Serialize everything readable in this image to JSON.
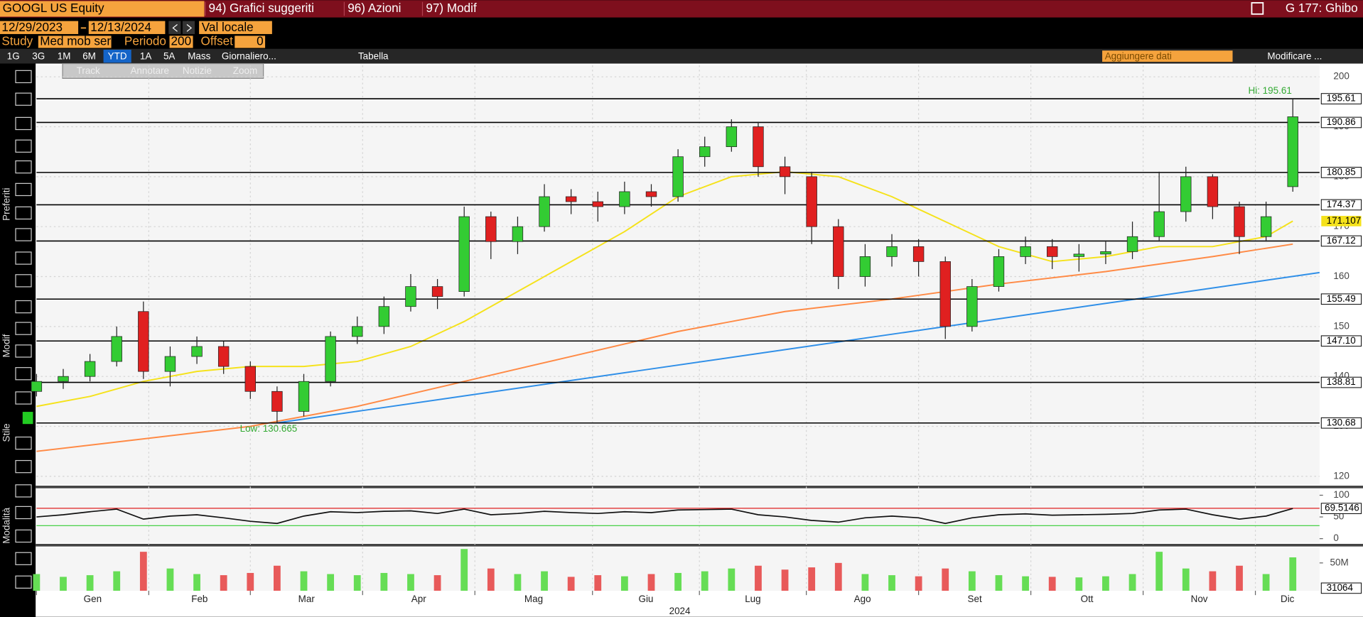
{
  "ui": {
    "ticker": "GOOGL US Equity",
    "menu": [
      "94) Grafici suggeriti",
      "96) Azioni",
      "97) Modif"
    ],
    "right_title": "G 177: Ghibo",
    "start_date": "12/29/2023",
    "end_date": "12/13/2024",
    "currency": "Val locale",
    "study_label": "Study",
    "study": "Med mob ser",
    "period_label": "Periodo",
    "period": "200",
    "offset_label": "Offset",
    "offset": "0",
    "tabs": [
      "1G",
      "3G",
      "1M",
      "6M",
      "YTD",
      "1A",
      "5A",
      "Mass",
      "Giornaliero..."
    ],
    "table": "Tabella",
    "add_data": "Aggiungere dati",
    "edit": "Modificare ...",
    "tools": [
      "Track",
      "Annotare",
      "Notizie",
      "Zoom"
    ],
    "side": [
      "Preferiti",
      "Modif",
      "Stile",
      "Modalità"
    ],
    "volume_label": "31064"
  },
  "chart_data": [
    {
      "type": "candlestick",
      "up_color": "#33cc33",
      "down_color": "#e02020",
      "grid": true,
      "x": [
        0,
        5,
        10,
        15,
        20,
        25,
        30,
        35,
        40,
        45,
        50,
        55,
        60,
        65,
        70,
        75,
        80,
        85,
        90,
        95,
        100,
        105,
        110,
        115,
        120,
        125,
        130,
        135,
        140,
        145,
        150,
        155,
        160,
        165,
        170,
        175,
        180,
        185,
        190,
        195,
        200,
        205,
        210,
        215,
        220,
        225,
        230,
        235
      ],
      "open": [
        137,
        139,
        140,
        143,
        153,
        141,
        144,
        146,
        142,
        137,
        133,
        139,
        148,
        150,
        154,
        158,
        157,
        172,
        167,
        170,
        176,
        175,
        174,
        177,
        176,
        184,
        186,
        190,
        182,
        180,
        170,
        160,
        164,
        166,
        163,
        150,
        158,
        164,
        166,
        164,
        164.5,
        165,
        168,
        173,
        180,
        174,
        168,
        178
      ],
      "high": [
        140.5,
        141.5,
        144.5,
        150,
        155,
        146,
        148,
        147,
        143,
        138,
        140.5,
        149,
        152,
        156,
        160.5,
        159.5,
        174,
        173,
        172,
        178.5,
        177.5,
        177,
        179,
        178.5,
        185.5,
        188,
        191.5,
        191,
        184,
        181,
        171.5,
        166.5,
        168.5,
        167.5,
        164,
        159.5,
        165.5,
        168,
        167.5,
        166.5,
        167,
        171,
        181,
        182,
        180.5,
        175,
        175,
        195.6
      ],
      "low": [
        136,
        137.5,
        139,
        142,
        139.5,
        138,
        142.5,
        140.5,
        135.5,
        130.7,
        132,
        138,
        146.5,
        148.5,
        153,
        153.5,
        156,
        163.5,
        164.5,
        169,
        172.5,
        171,
        172.5,
        174,
        175,
        182,
        185,
        180,
        176.5,
        166.5,
        157.5,
        158,
        162,
        160,
        147.5,
        149,
        157,
        162.5,
        161.5,
        161,
        162.5,
        163.5,
        167,
        171,
        171.5,
        164.5,
        167,
        177
      ],
      "close": [
        139,
        140,
        143,
        148,
        141,
        144,
        146,
        142,
        137,
        133,
        139,
        148,
        150,
        154,
        158,
        156,
        172,
        167,
        170,
        176,
        175,
        174,
        177,
        176,
        184,
        186,
        190,
        182,
        180,
        170,
        160,
        164,
        166,
        163,
        150,
        158,
        164,
        166,
        164,
        164.5,
        165,
        168,
        173,
        180,
        174,
        168,
        172,
        192
      ],
      "xlim": [
        0,
        240
      ],
      "xticks": [
        {
          "value": 0,
          "label": "Gen"
        },
        {
          "value": 21,
          "label": "Feb"
        },
        {
          "value": 40,
          "label": "Mar"
        },
        {
          "value": 61,
          "label": "Apr"
        },
        {
          "value": 82,
          "label": "Mag"
        },
        {
          "value": 104,
          "label": "Giu"
        },
        {
          "value": 124,
          "label": "Lug"
        },
        {
          "value": 144,
          "label": "Ago"
        },
        {
          "value": 165,
          "label": "Set"
        },
        {
          "value": 186,
          "label": "Ott"
        },
        {
          "value": 207,
          "label": "Nov"
        },
        {
          "value": 228,
          "label": "Dic"
        }
      ],
      "x_label": "2024",
      "ylim": [
        118.3,
        202.3
      ],
      "yticks": [
        120,
        130,
        140,
        150,
        160,
        170,
        180,
        190,
        200
      ],
      "series": [
        {
          "color": "#f5e21b",
          "x": [
            0,
            10,
            20,
            30,
            40,
            50,
            60,
            70,
            80,
            90,
            100,
            110,
            120,
            130,
            140,
            150,
            160,
            170,
            180,
            190,
            200,
            210,
            220,
            230,
            235
          ],
          "values": [
            134,
            136,
            139,
            141,
            142,
            142,
            143,
            146,
            151,
            157,
            163,
            169,
            176,
            180,
            181,
            180,
            176,
            171,
            166,
            163,
            164,
            166,
            166,
            168,
            171.107
          ]
        },
        {
          "color": "#ff8a45",
          "x": [
            0,
            20,
            40,
            60,
            80,
            100,
            120,
            140,
            160,
            180,
            200,
            220,
            235
          ],
          "values": [
            125,
            127.5,
            130,
            134,
            139,
            144,
            149,
            153,
            155.5,
            158.5,
            161,
            164,
            166.5
          ]
        },
        {
          "color": "#2f8fe8",
          "x": [
            45,
            240
          ],
          "values": [
            130.7,
            160.8
          ]
        }
      ],
      "levels": {
        "values": [
          195.61,
          190.86,
          180.85,
          174.37,
          167.12,
          155.49,
          147.1,
          138.81,
          130.68
        ],
        "value_labels": [
          "195.61",
          "190.86",
          "180.85",
          "174.37",
          "167.12",
          "155.49",
          "147.10",
          "138.81",
          "130.68"
        ]
      },
      "annotations": [
        "Hi: 195.61",
        "Low: 130.665"
      ]
    },
    {
      "type": "line",
      "color": "#111111",
      "ylim": [
        -10,
        114
      ],
      "yticks": [
        0,
        50,
        100
      ],
      "upper": 70,
      "lower": 30,
      "upper_color": "#e02020",
      "lower_color": "#33cc33",
      "x": [
        0,
        5,
        10,
        15,
        20,
        25,
        30,
        35,
        40,
        45,
        50,
        55,
        60,
        65,
        70,
        75,
        80,
        85,
        90,
        95,
        100,
        105,
        110,
        115,
        120,
        125,
        130,
        135,
        140,
        145,
        150,
        155,
        160,
        165,
        170,
        175,
        180,
        185,
        190,
        195,
        200,
        205,
        210,
        215,
        220,
        225,
        230,
        235
      ],
      "values": [
        50,
        55,
        62,
        68,
        45,
        52,
        55,
        48,
        40,
        35,
        52,
        62,
        60,
        63,
        64,
        58,
        68,
        55,
        58,
        63,
        60,
        58,
        62,
        60,
        66,
        67,
        68,
        55,
        50,
        42,
        38,
        48,
        52,
        48,
        35,
        48,
        55,
        57,
        54,
        55,
        56,
        58,
        66,
        68,
        55,
        45,
        52,
        69.5146
      ]
    },
    {
      "type": "bar",
      "ylim": [
        0,
        78000000
      ],
      "yticks": [
        {
          "value": 50000000,
          "label": "50M"
        }
      ],
      "x": [
        0,
        5,
        10,
        15,
        20,
        25,
        30,
        35,
        40,
        45,
        50,
        55,
        60,
        65,
        70,
        75,
        80,
        85,
        90,
        95,
        100,
        105,
        110,
        115,
        120,
        125,
        130,
        135,
        140,
        145,
        150,
        155,
        160,
        165,
        170,
        175,
        180,
        185,
        190,
        195,
        200,
        205,
        210,
        215,
        220,
        225,
        230,
        235
      ],
      "values": [
        30000000,
        25000000,
        28000000,
        35000000,
        70000000,
        40000000,
        30000000,
        28000000,
        32000000,
        45000000,
        35000000,
        30000000,
        28000000,
        32000000,
        30000000,
        28000000,
        75000000,
        40000000,
        30000000,
        35000000,
        25000000,
        28000000,
        26000000,
        30000000,
        32000000,
        35000000,
        40000000,
        45000000,
        38000000,
        42000000,
        50000000,
        30000000,
        28000000,
        26000000,
        40000000,
        35000000,
        28000000,
        26000000,
        25000000,
        24000000,
        26000000,
        30000000,
        70000000,
        40000000,
        35000000,
        45000000,
        30000000,
        60000000
      ]
    }
  ]
}
